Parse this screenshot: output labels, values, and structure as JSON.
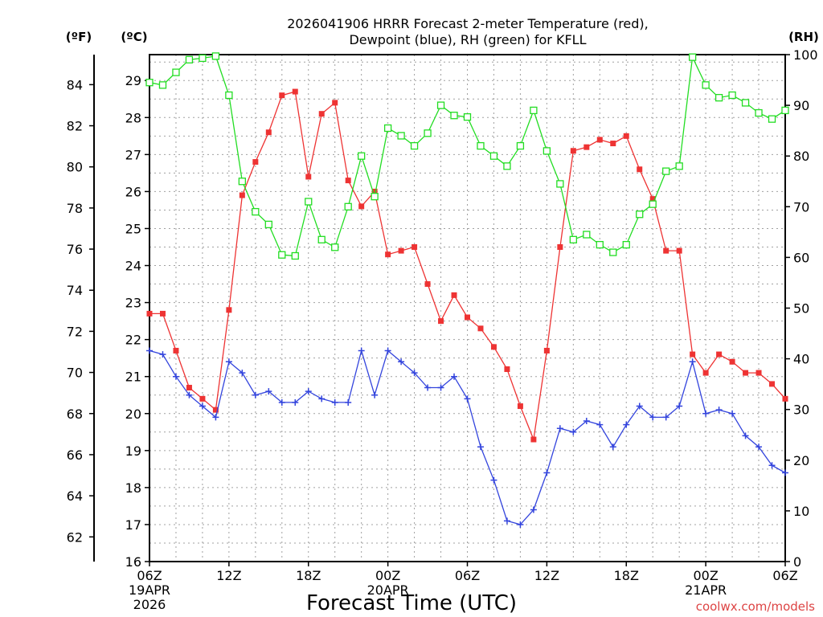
{
  "chart_data": {
    "type": "line",
    "title_line1": "2026041906 HRRR Forecast 2-meter Temperature (red),",
    "title_line2": "Dewpoint (blue), RH (green) for KFLL",
    "xlabel": "Forecast Time (UTC)",
    "unit_f": "(ºF)",
    "unit_c": "(ºC)",
    "unit_rh": "(RH)",
    "watermark": "coolwx.com/models",
    "x": [
      0,
      1,
      2,
      3,
      4,
      5,
      6,
      7,
      8,
      9,
      10,
      11,
      12,
      13,
      14,
      15,
      16,
      17,
      18,
      19,
      20,
      21,
      22,
      23,
      24,
      25,
      26,
      27,
      28,
      29,
      30,
      31,
      32,
      33,
      34,
      35,
      36,
      37,
      38,
      39,
      40,
      41,
      42,
      43,
      44,
      45,
      46,
      47,
      48
    ],
    "x_ticks": [
      {
        "x": 0,
        "label": "06Z",
        "sub": [
          "19APR",
          "2026"
        ]
      },
      {
        "x": 6,
        "label": "12Z",
        "sub": []
      },
      {
        "x": 12,
        "label": "18Z",
        "sub": []
      },
      {
        "x": 18,
        "label": "00Z",
        "sub": [
          "20APR"
        ]
      },
      {
        "x": 24,
        "label": "06Z",
        "sub": []
      },
      {
        "x": 30,
        "label": "12Z",
        "sub": []
      },
      {
        "x": 36,
        "label": "18Z",
        "sub": []
      },
      {
        "x": 42,
        "label": "00Z",
        "sub": [
          "21APR"
        ]
      },
      {
        "x": 48,
        "label": "06Z",
        "sub": []
      }
    ],
    "xlim": [
      0,
      48
    ],
    "ylim_c": [
      16,
      29.7
    ],
    "ylim_rh": [
      0,
      100
    ],
    "c_ticks": [
      "16",
      "17",
      "18",
      "19",
      "20",
      "21",
      "22",
      "23",
      "24",
      "25",
      "26",
      "27",
      "28",
      "29"
    ],
    "f_ticks": [
      "62",
      "64",
      "66",
      "68",
      "70",
      "72",
      "74",
      "76",
      "78",
      "80",
      "82",
      "84"
    ],
    "rh_ticks": [
      "0",
      "10",
      "20",
      "30",
      "40",
      "50",
      "60",
      "70",
      "80",
      "90",
      "100"
    ],
    "grid": true,
    "colors": {
      "temperature": "#ee3333",
      "dewpoint": "#3344dd",
      "rh": "#22dd22"
    },
    "series": [
      {
        "name": "Temperature (red)",
        "unit": "C",
        "values": [
          22.7,
          22.7,
          21.7,
          20.7,
          20.4,
          20.1,
          22.8,
          25.9,
          26.8,
          27.6,
          28.6,
          28.7,
          26.4,
          28.1,
          28.4,
          26.3,
          25.6,
          26.0,
          24.3,
          24.4,
          24.5,
          23.5,
          22.5,
          23.2,
          22.6,
          22.3,
          21.8,
          21.2,
          20.2,
          19.3,
          21.7,
          24.5,
          27.1,
          27.2,
          27.4,
          27.3,
          27.5,
          26.6,
          25.8,
          24.4,
          24.4,
          21.6,
          21.1,
          21.6,
          21.4,
          21.1,
          21.1,
          20.8,
          20.4
        ]
      },
      {
        "name": "Dewpoint (blue)",
        "unit": "C",
        "values": [
          21.7,
          21.6,
          21.0,
          20.5,
          20.2,
          19.9,
          21.4,
          21.1,
          20.5,
          20.6,
          20.3,
          20.3,
          20.6,
          20.4,
          20.3,
          20.3,
          21.7,
          20.5,
          21.7,
          21.4,
          21.1,
          20.7,
          20.7,
          21.0,
          20.4,
          19.1,
          18.2,
          17.1,
          17.0,
          17.4,
          18.4,
          19.6,
          19.5,
          19.8,
          19.7,
          19.1,
          19.7,
          20.2,
          19.9,
          19.9,
          20.2,
          21.4,
          20.0,
          20.1,
          20.0,
          19.4,
          19.1,
          18.6,
          18.4
        ]
      },
      {
        "name": "RH (green)",
        "unit": "%",
        "values": [
          94.5,
          94,
          96.5,
          99,
          99.3,
          99.7,
          92,
          75,
          69,
          66.5,
          60.5,
          60.3,
          71,
          63.5,
          62,
          70,
          80,
          72,
          85.5,
          84,
          82,
          84.5,
          90,
          88,
          87.7,
          82,
          80,
          78,
          82,
          89,
          81,
          74.5,
          63.5,
          64.5,
          62.5,
          61,
          62.5,
          68.5,
          70.5,
          77,
          78,
          99.5,
          94,
          91.5,
          92,
          90.5,
          88.5,
          87.3,
          89
        ]
      }
    ]
  }
}
